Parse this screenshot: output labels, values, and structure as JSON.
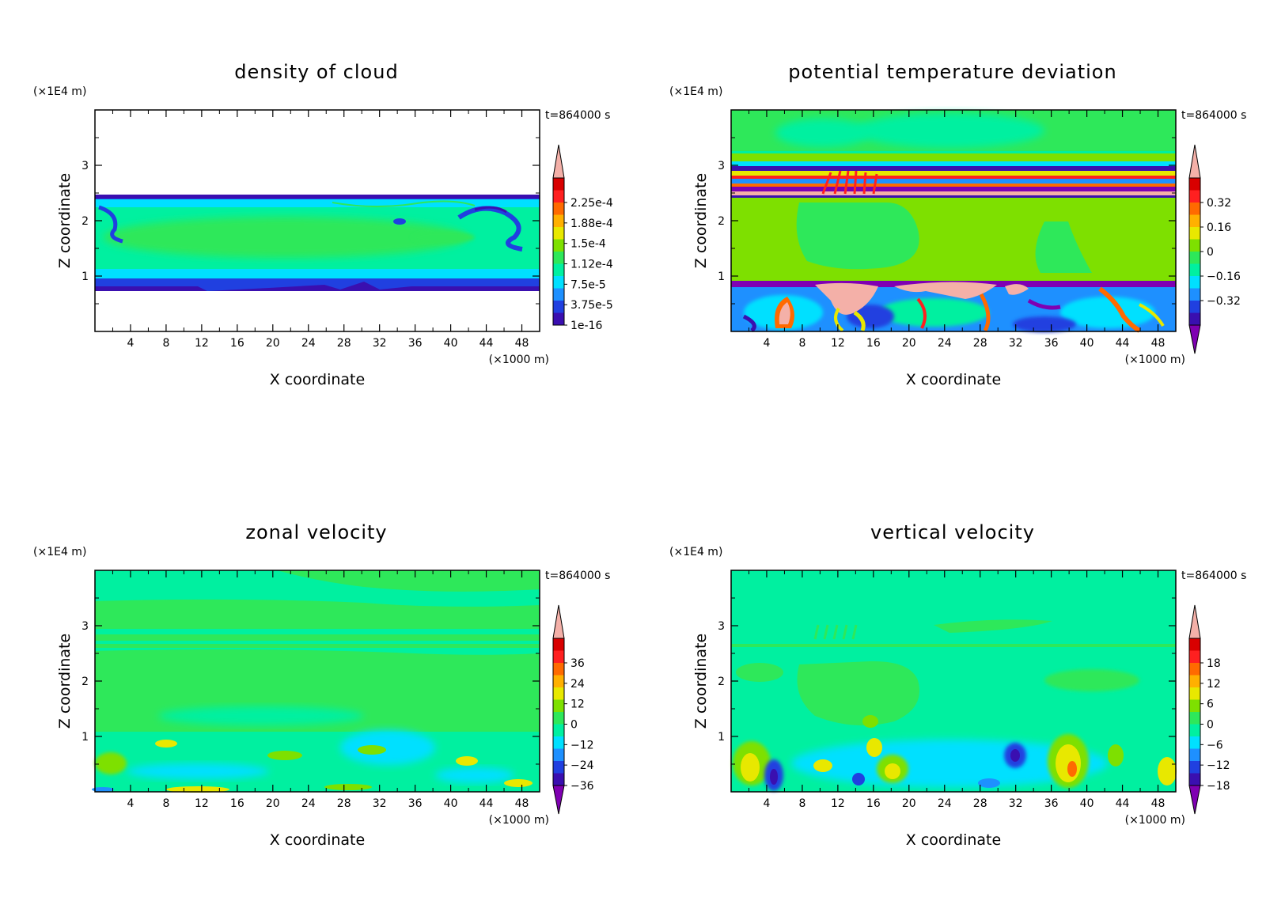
{
  "chart_data": [
    {
      "type": "heatmap",
      "title": "density of cloud",
      "xlabel": "X coordinate",
      "ylabel": "Z coordinate",
      "x_unit": "(×1000 m)",
      "y_unit": "(×1E4 m)",
      "time_label": "t=864000 s",
      "xlim": [
        0,
        50
      ],
      "ylim": [
        0,
        4
      ],
      "x_ticks": [
        4,
        8,
        12,
        16,
        20,
        24,
        28,
        32,
        36,
        40,
        44,
        48
      ],
      "y_ticks": [
        1,
        2,
        3
      ],
      "colorbar": {
        "labels": [
          "2.25e-4",
          "1.88e-4",
          "1.5e-4",
          "1.12e-4",
          "7.5e-5",
          "3.75e-5",
          "1e-16"
        ],
        "extend": "max"
      }
    },
    {
      "type": "heatmap",
      "title": "potential temperature deviation",
      "xlabel": "X coordinate",
      "ylabel": "Z coordinate",
      "x_unit": "(×1000 m)",
      "y_unit": "(×1E4 m)",
      "time_label": "t=864000 s",
      "xlim": [
        0,
        50
      ],
      "ylim": [
        0,
        4
      ],
      "x_ticks": [
        4,
        8,
        12,
        16,
        20,
        24,
        28,
        32,
        36,
        40,
        44,
        48
      ],
      "y_ticks": [
        1,
        2,
        3
      ],
      "colorbar": {
        "labels": [
          "0.32",
          "0.16",
          "0",
          "−0.16",
          "−0.32"
        ],
        "extend": "both"
      }
    },
    {
      "type": "heatmap",
      "title": "zonal velocity",
      "xlabel": "X coordinate",
      "ylabel": "Z coordinate",
      "x_unit": "(×1000 m)",
      "y_unit": "(×1E4 m)",
      "time_label": "t=864000 s",
      "xlim": [
        0,
        50
      ],
      "ylim": [
        0,
        4
      ],
      "x_ticks": [
        4,
        8,
        12,
        16,
        20,
        24,
        28,
        32,
        36,
        40,
        44,
        48
      ],
      "y_ticks": [
        1,
        2,
        3
      ],
      "colorbar": {
        "labels": [
          "36",
          "24",
          "12",
          "0",
          "−12",
          "−24",
          "−36"
        ],
        "extend": "both"
      }
    },
    {
      "type": "heatmap",
      "title": "vertical velocity",
      "xlabel": "X coordinate",
      "ylabel": "Z coordinate",
      "x_unit": "(×1000 m)",
      "y_unit": "(×1E4 m)",
      "time_label": "t=864000 s",
      "xlim": [
        0,
        50
      ],
      "ylim": [
        0,
        4
      ],
      "x_ticks": [
        4,
        8,
        12,
        16,
        20,
        24,
        28,
        32,
        36,
        40,
        44,
        48
      ],
      "y_ticks": [
        1,
        2,
        3
      ],
      "colorbar": {
        "labels": [
          "18",
          "12",
          "6",
          "0",
          "−6",
          "−12",
          "−18"
        ],
        "extend": "both"
      }
    }
  ],
  "colors": {
    "scale": [
      "#7f00b2",
      "#3a0fb0",
      "#2040e0",
      "#1e90ff",
      "#00e0ff",
      "#00f0a0",
      "#2ee85a",
      "#7ee000",
      "#e8e800",
      "#ffb000",
      "#ff6a00",
      "#ff2020",
      "#d80000",
      "#f4b0a8"
    ],
    "background": "#00f080",
    "frame": "#000000"
  }
}
